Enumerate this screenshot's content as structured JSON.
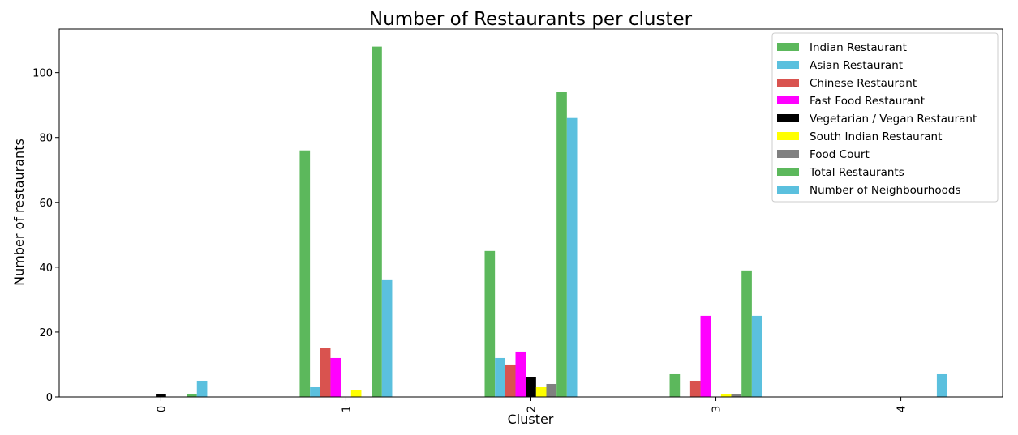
{
  "chart_data": {
    "type": "bar",
    "title": "Number of Restaurants per cluster",
    "xlabel": "Cluster",
    "ylabel": "Number of restaurants",
    "categories": [
      "0",
      "1",
      "2",
      "3",
      "4"
    ],
    "ylim": [
      0,
      113.4
    ],
    "yticks": [
      0,
      20,
      40,
      60,
      80,
      100
    ],
    "grid": false,
    "legend_position": "top-right",
    "series": [
      {
        "name": "Indian Restaurant",
        "color": "#5cb85c",
        "values": [
          0,
          76,
          45,
          7,
          0
        ]
      },
      {
        "name": "Asian Restaurant",
        "color": "#5bc0de",
        "values": [
          0,
          3,
          12,
          0,
          0
        ]
      },
      {
        "name": "Chinese Restaurant",
        "color": "#d9534f",
        "values": [
          0,
          15,
          10,
          5,
          0
        ]
      },
      {
        "name": "Fast Food Restaurant",
        "color": "#ff00ff",
        "values": [
          0,
          12,
          14,
          25,
          0
        ]
      },
      {
        "name": "Vegetarian / Vegan Restaurant",
        "color": "#000000",
        "values": [
          1,
          0,
          6,
          0,
          0
        ]
      },
      {
        "name": "South Indian Restaurant",
        "color": "#ffff00",
        "values": [
          0,
          2,
          3,
          1,
          0
        ]
      },
      {
        "name": "Food Court",
        "color": "#808080",
        "values": [
          0,
          0,
          4,
          1,
          0
        ]
      },
      {
        "name": "Total Restaurants",
        "color": "#5cb85c",
        "values": [
          1,
          108,
          94,
          39,
          0
        ]
      },
      {
        "name": "Number of Neighbourhoods",
        "color": "#5bc0de",
        "values": [
          5,
          36,
          86,
          25,
          7
        ]
      }
    ]
  }
}
